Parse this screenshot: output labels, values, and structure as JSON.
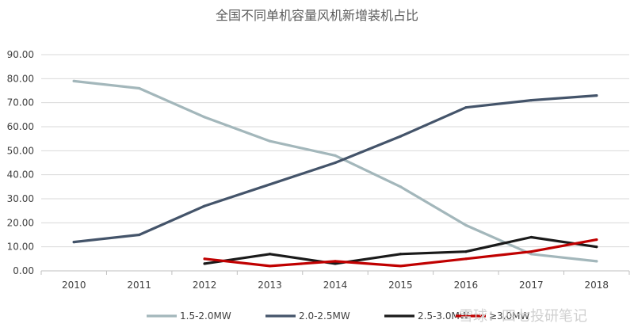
{
  "chart_data": {
    "type": "line",
    "title": "全国不同单机容量风机新增装机占比",
    "xlabel": "",
    "ylabel": "",
    "categories": [
      "2010",
      "2011",
      "2012",
      "2013",
      "2014",
      "2015",
      "2016",
      "2017",
      "2018"
    ],
    "ylim": [
      0,
      90
    ],
    "yticks": [
      "0.00",
      "10.00",
      "20.00",
      "30.00",
      "40.00",
      "50.00",
      "60.00",
      "70.00",
      "80.00",
      "90.00"
    ],
    "grid": true,
    "legend_position": "bottom",
    "series": [
      {
        "name": "1.5-2.0MW",
        "color": "#a3b7bb",
        "values": [
          79,
          76,
          64,
          54,
          48,
          35,
          19,
          7,
          4
        ]
      },
      {
        "name": "2.0-2.5MW",
        "color": "#44546a",
        "values": [
          12,
          15,
          27,
          36,
          45,
          56,
          68,
          71,
          73
        ]
      },
      {
        "name": "2.5-3.0MW",
        "color": "#1a1a1a",
        "values": [
          null,
          null,
          3,
          7,
          3,
          7,
          8,
          14,
          10
        ]
      },
      {
        "name": "≥3.0MW",
        "color": "#c00000",
        "values": [
          null,
          null,
          5,
          2,
          4,
          2,
          5,
          8,
          13
        ]
      }
    ]
  },
  "watermark": "雪球：四七投研笔记"
}
